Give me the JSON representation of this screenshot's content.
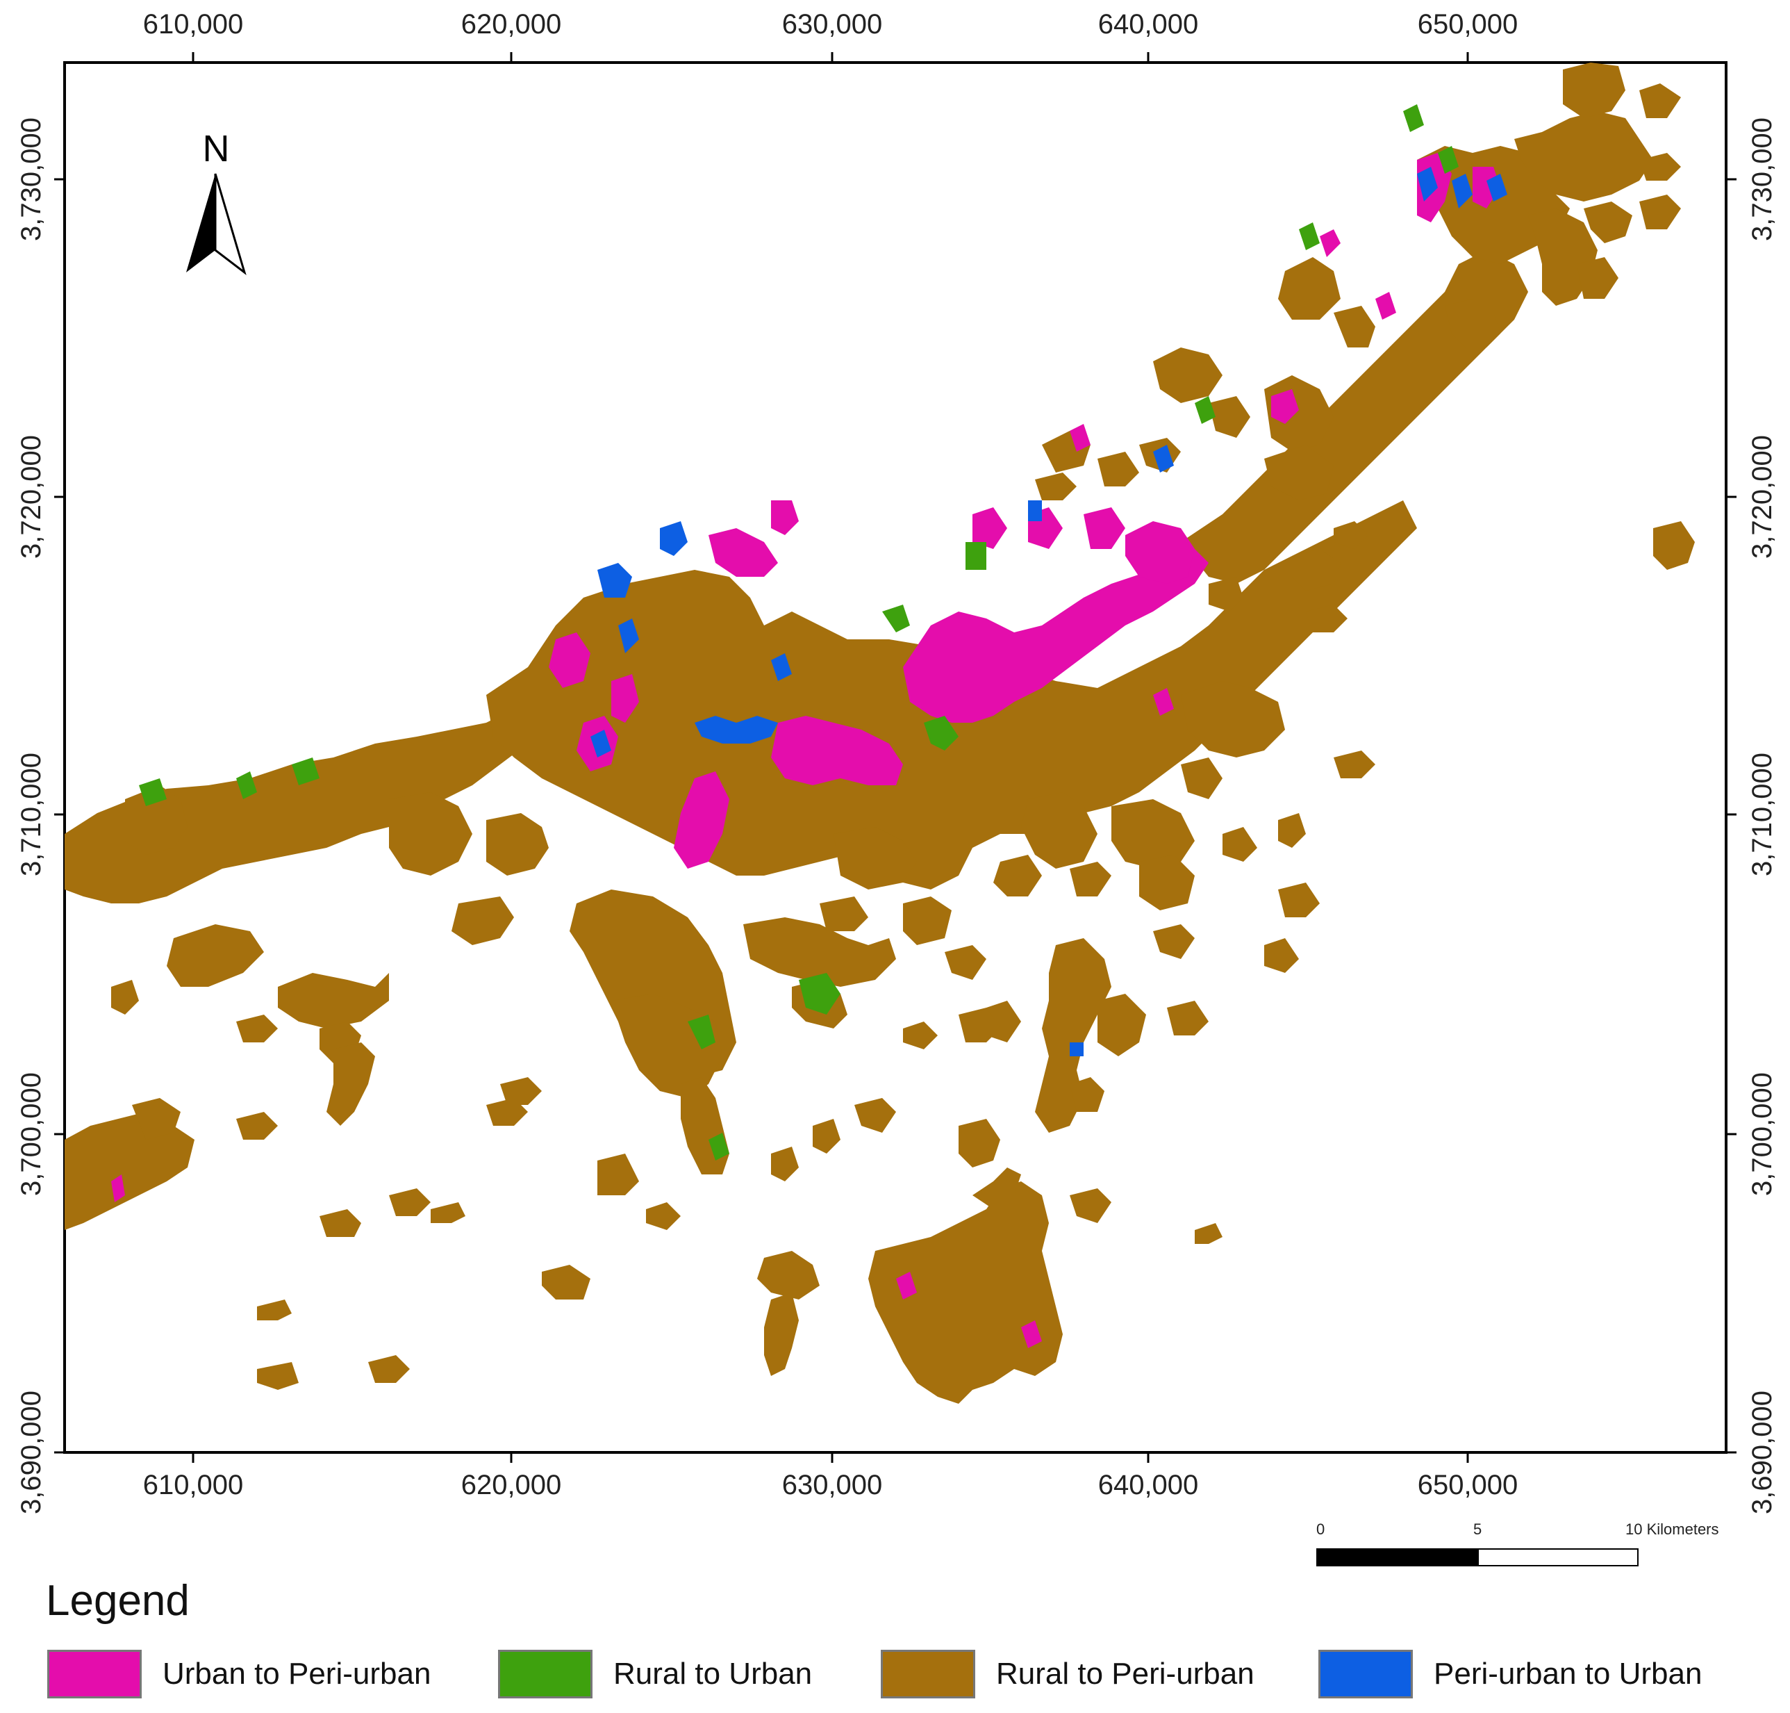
{
  "map": {
    "x_ticks": [
      "610,000",
      "620,000",
      "630,000",
      "640,000",
      "650,000"
    ],
    "y_ticks": [
      "3,730,000",
      "3,720,000",
      "3,710,000",
      "3,700,000",
      "3,690,000"
    ],
    "north_label": "N"
  },
  "legend": {
    "title": "Legend",
    "items": [
      {
        "label": "Urban to Peri-urban",
        "color": "#e40dac"
      },
      {
        "label": "Rural to Urban",
        "color": "#3ea10e"
      },
      {
        "label": "Rural to Peri-urban",
        "color": "#a5700d"
      },
      {
        "label": "Peri-urban to Urban",
        "color": "#0d5fe3"
      }
    ]
  },
  "scale_bar": {
    "labels": [
      "0",
      "5",
      "10 Kilometers"
    ]
  }
}
